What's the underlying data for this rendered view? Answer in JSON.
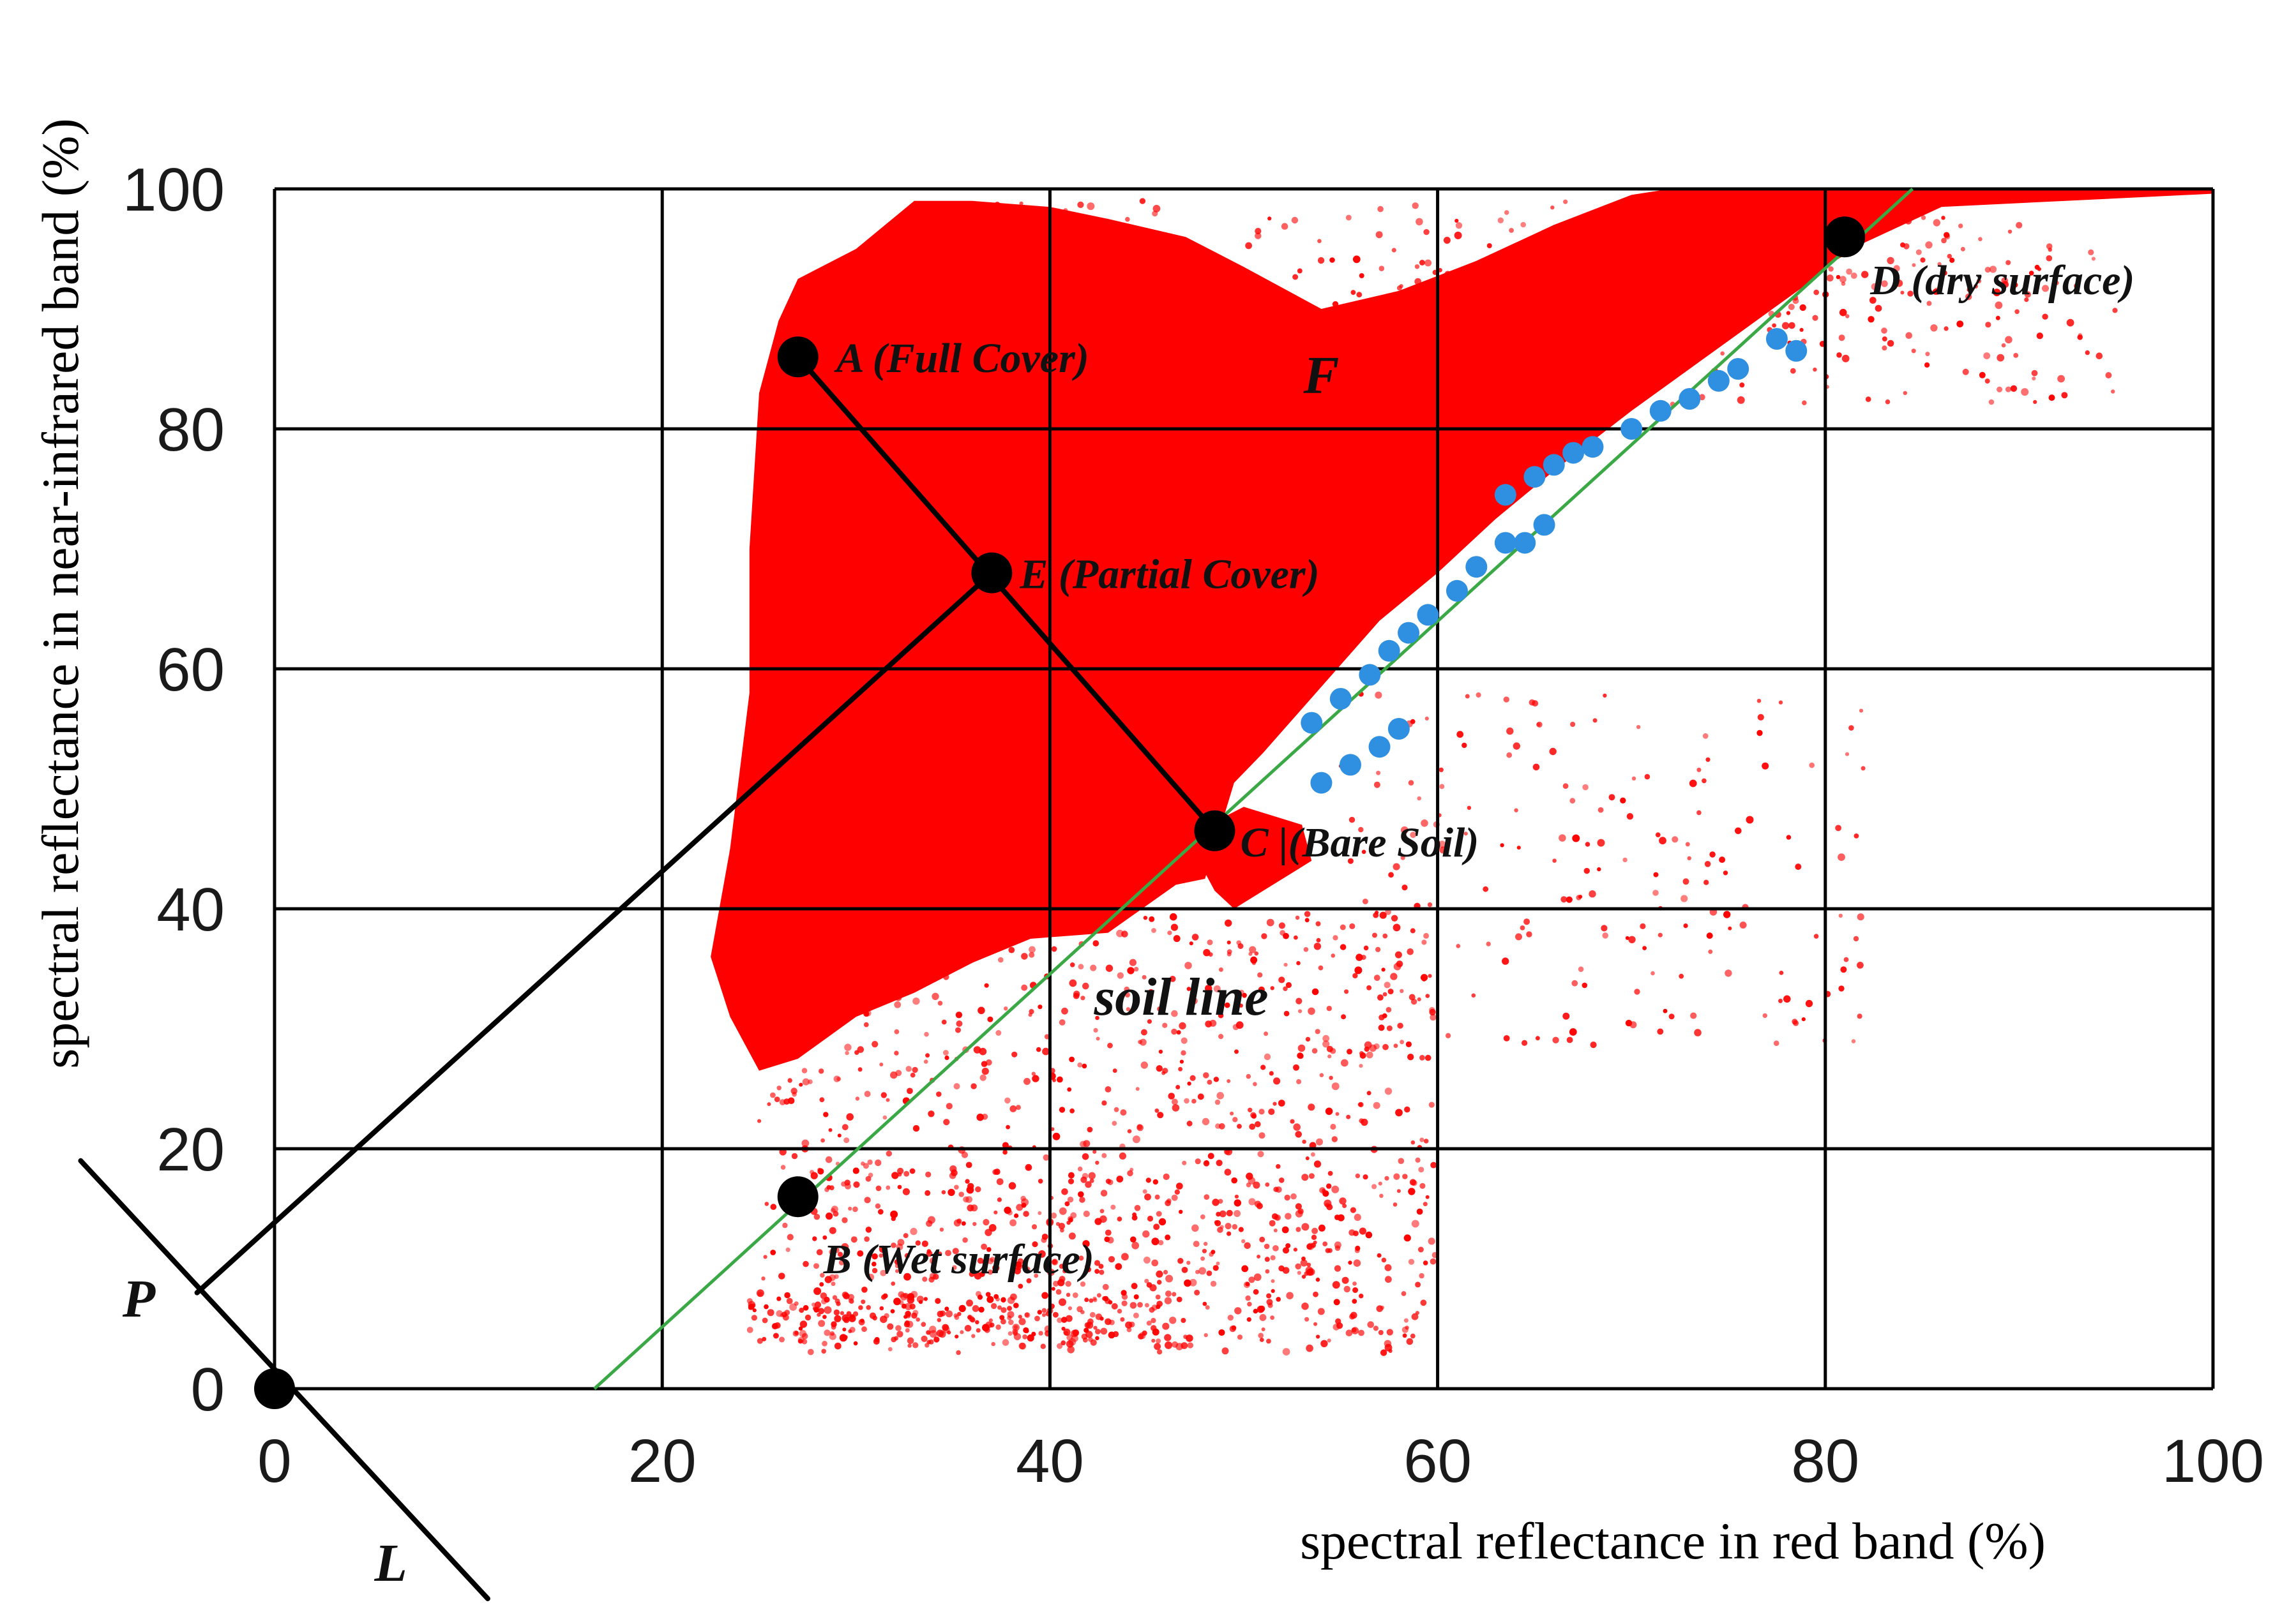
{
  "chart_data": {
    "type": "scatter",
    "title": "",
    "xlabel": "spectral reflectance in red band (%)",
    "ylabel": "spectral reflectance in near-infrared band (%)",
    "xlim": [
      0,
      100
    ],
    "ylim": [
      0,
      100
    ],
    "grid": true,
    "x_ticks": [
      "0",
      "20",
      "40",
      "60",
      "80",
      "100"
    ],
    "y_ticks": [
      "0",
      "20",
      "40",
      "60",
      "80",
      "100"
    ],
    "colors": {
      "scatter": "#ff0000",
      "soil_line": "#39a845",
      "highlight": "#2f8fe0",
      "lines": "#000000"
    },
    "soil_line": {
      "label": "soil line",
      "x": [
        16.5,
        84.5
      ],
      "y": [
        0,
        100
      ]
    },
    "points": [
      {
        "id": "A",
        "label": "A (Full Cover)",
        "x": 27,
        "y": 86
      },
      {
        "id": "B",
        "label": "B (Wet surface)",
        "x": 27,
        "y": 16
      },
      {
        "id": "C",
        "label": "C |(Bare Soil)",
        "x": 48.5,
        "y": 46.5
      },
      {
        "id": "D",
        "label": "D (dry surface)",
        "x": 81,
        "y": 96
      },
      {
        "id": "E",
        "label": "E (Partial Cover)",
        "x": 37,
        "y": 68
      },
      {
        "id": "O",
        "label": "",
        "x": 0,
        "y": 0
      }
    ],
    "line_segments": [
      {
        "name": "line-a-c",
        "from": [
          27,
          86
        ],
        "to": [
          48.5,
          46.5
        ]
      },
      {
        "name": "line-e-p",
        "from": [
          37,
          68
        ],
        "to": [
          -4,
          8
        ]
      },
      {
        "name": "line-l",
        "from": [
          -10,
          19
        ],
        "to": [
          11,
          -17.5
        ]
      }
    ],
    "extra_labels": [
      {
        "name": "label-f",
        "text": "F",
        "x": 54,
        "y": 83
      },
      {
        "name": "label-p",
        "text": "P",
        "x": -7,
        "y": 6
      },
      {
        "name": "label-l",
        "text": "L",
        "x": 6,
        "y": -16
      }
    ],
    "highlight_series": [
      {
        "x": [
          53.5,
          55,
          56.5,
          57.5,
          58.5,
          59.5,
          61,
          62,
          63.5
        ],
        "y": [
          55.5,
          57.5,
          59.5,
          61.5,
          63,
          64.5,
          66.5,
          68.5,
          70.5
        ]
      },
      {
        "x": [
          63.5,
          65,
          66,
          67,
          68
        ],
        "y": [
          74.5,
          76,
          77,
          78,
          78.5
        ]
      },
      {
        "x": [
          64.5,
          65.5
        ],
        "y": [
          70.5,
          72
        ]
      },
      {
        "x": [
          70,
          71.5,
          73,
          74.5,
          75.5,
          77.5,
          78.5
        ],
        "y": [
          80,
          81.5,
          82.5,
          84,
          85,
          87.5,
          86.5
        ]
      },
      {
        "x": [
          54,
          55.5,
          57,
          58
        ],
        "y": [
          50.5,
          52,
          53.5,
          55
        ]
      }
    ]
  }
}
